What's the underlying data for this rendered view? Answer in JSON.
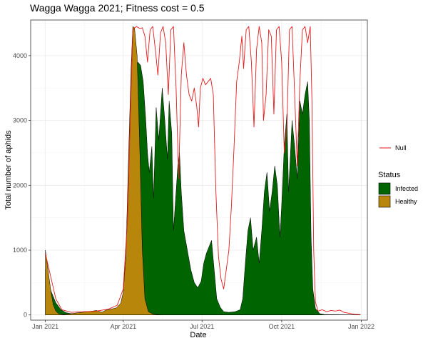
{
  "chart_data": {
    "type": "area",
    "title": "Wagga Wagga 2021; Fitness cost = 0.5",
    "xlabel": "Date",
    "ylabel": "Total number of aphids",
    "x_range": [
      "2020-12-15",
      "2022-01-08"
    ],
    "x_ticks": [
      {
        "date": "2021-01-01",
        "label": "Jan 2021"
      },
      {
        "date": "2021-04-01",
        "label": "Apr 2021"
      },
      {
        "date": "2021-07-01",
        "label": "Jul 2021"
      },
      {
        "date": "2021-10-01",
        "label": "Oct 2021"
      },
      {
        "date": "2022-01-01",
        "label": "Jan 2022"
      }
    ],
    "ylim": [
      -80,
      4550
    ],
    "y_ticks": [
      0,
      1000,
      2000,
      3000,
      4000
    ],
    "grid": true,
    "legend": {
      "position": "right",
      "line_entry": "Null",
      "fill_title": "Status",
      "fill_entries": [
        "Infected",
        "Healthy"
      ]
    },
    "series": [
      {
        "name": "Infected",
        "kind": "area",
        "color": "#006400",
        "points": [
          [
            "2021-01-01",
            700
          ],
          [
            "2021-01-04",
            520
          ],
          [
            "2021-01-08",
            350
          ],
          [
            "2021-01-13",
            190
          ],
          [
            "2021-01-19",
            80
          ],
          [
            "2021-01-25",
            35
          ],
          [
            "2021-01-31",
            20
          ],
          [
            "2021-02-08",
            25
          ],
          [
            "2021-02-15",
            35
          ],
          [
            "2021-02-22",
            40
          ],
          [
            "2021-03-01",
            45
          ],
          [
            "2021-03-08",
            40
          ],
          [
            "2021-03-15",
            50
          ],
          [
            "2021-03-22",
            45
          ],
          [
            "2021-03-28",
            60
          ],
          [
            "2021-04-01",
            80
          ],
          [
            "2021-04-05",
            200
          ],
          [
            "2021-04-09",
            800
          ],
          [
            "2021-04-12",
            2200
          ],
          [
            "2021-04-14",
            3500
          ],
          [
            "2021-04-15",
            3800
          ],
          [
            "2021-04-18",
            3900
          ],
          [
            "2021-04-21",
            3850
          ],
          [
            "2021-04-24",
            3600
          ],
          [
            "2021-04-27",
            3000
          ],
          [
            "2021-04-29",
            2500
          ],
          [
            "2021-05-01",
            2200
          ],
          [
            "2021-05-04",
            2600
          ],
          [
            "2021-05-06",
            1800
          ],
          [
            "2021-05-09",
            3200
          ],
          [
            "2021-05-12",
            2700
          ],
          [
            "2021-05-16",
            3500
          ],
          [
            "2021-05-19",
            3000
          ],
          [
            "2021-05-22",
            2400
          ],
          [
            "2021-05-24",
            3300
          ],
          [
            "2021-05-27",
            2800
          ],
          [
            "2021-05-29",
            1300
          ],
          [
            "2021-06-01",
            1900
          ],
          [
            "2021-06-03",
            2300
          ],
          [
            "2021-06-05",
            2500
          ],
          [
            "2021-06-07",
            1900
          ],
          [
            "2021-06-10",
            1300
          ],
          [
            "2021-06-14",
            1000
          ],
          [
            "2021-06-18",
            700
          ],
          [
            "2021-06-22",
            500
          ],
          [
            "2021-06-26",
            420
          ],
          [
            "2021-06-30",
            520
          ],
          [
            "2021-07-03",
            800
          ],
          [
            "2021-07-06",
            950
          ],
          [
            "2021-07-09",
            1050
          ],
          [
            "2021-07-12",
            1150
          ],
          [
            "2021-07-15",
            700
          ],
          [
            "2021-07-18",
            250
          ],
          [
            "2021-07-22",
            120
          ],
          [
            "2021-07-26",
            50
          ],
          [
            "2021-08-01",
            40
          ],
          [
            "2021-08-08",
            50
          ],
          [
            "2021-08-14",
            80
          ],
          [
            "2021-08-17",
            250
          ],
          [
            "2021-08-20",
            800
          ],
          [
            "2021-08-23",
            1300
          ],
          [
            "2021-08-26",
            1500
          ],
          [
            "2021-08-29",
            1000
          ],
          [
            "2021-09-02",
            1200
          ],
          [
            "2021-09-05",
            800
          ],
          [
            "2021-09-08",
            1300
          ],
          [
            "2021-09-11",
            1900
          ],
          [
            "2021-09-14",
            2200
          ],
          [
            "2021-09-17",
            1600
          ],
          [
            "2021-09-20",
            1900
          ],
          [
            "2021-09-23",
            2300
          ],
          [
            "2021-09-26",
            2000
          ],
          [
            "2021-09-29",
            1200
          ],
          [
            "2021-10-01",
            1700
          ],
          [
            "2021-10-04",
            2600
          ],
          [
            "2021-10-07",
            3100
          ],
          [
            "2021-10-09",
            1900
          ],
          [
            "2021-10-13",
            3000
          ],
          [
            "2021-10-16",
            2600
          ],
          [
            "2021-10-19",
            2100
          ],
          [
            "2021-10-22",
            3300
          ],
          [
            "2021-10-25",
            3100
          ],
          [
            "2021-10-28",
            3400
          ],
          [
            "2021-10-31",
            3600
          ],
          [
            "2021-11-02",
            3000
          ],
          [
            "2021-11-04",
            1200
          ],
          [
            "2021-11-06",
            400
          ],
          [
            "2021-11-09",
            100
          ],
          [
            "2021-11-14",
            20
          ],
          [
            "2021-11-20",
            5
          ],
          [
            "2021-12-31",
            0
          ]
        ]
      },
      {
        "name": "Healthy",
        "kind": "area",
        "color": "#b8860b",
        "points": [
          [
            "2021-01-01",
            1000
          ],
          [
            "2021-01-04",
            700
          ],
          [
            "2021-01-07",
            400
          ],
          [
            "2021-01-10",
            160
          ],
          [
            "2021-01-13",
            60
          ],
          [
            "2021-01-16",
            20
          ],
          [
            "2021-01-22",
            5
          ],
          [
            "2021-01-31",
            20
          ],
          [
            "2021-02-08",
            35
          ],
          [
            "2021-02-15",
            45
          ],
          [
            "2021-02-22",
            55
          ],
          [
            "2021-03-01",
            70
          ],
          [
            "2021-03-07",
            40
          ],
          [
            "2021-03-12",
            75
          ],
          [
            "2021-03-18",
            90
          ],
          [
            "2021-03-24",
            110
          ],
          [
            "2021-03-29",
            180
          ],
          [
            "2021-04-01",
            350
          ],
          [
            "2021-04-04",
            900
          ],
          [
            "2021-04-07",
            2400
          ],
          [
            "2021-04-10",
            3800
          ],
          [
            "2021-04-12",
            4450
          ],
          [
            "2021-04-14",
            4430
          ],
          [
            "2021-04-17",
            4000
          ],
          [
            "2021-04-20",
            2600
          ],
          [
            "2021-04-23",
            1000
          ],
          [
            "2021-04-26",
            250
          ],
          [
            "2021-04-30",
            50
          ],
          [
            "2021-05-06",
            10
          ],
          [
            "2021-05-16",
            0
          ],
          [
            "2021-12-31",
            0
          ]
        ]
      },
      {
        "name": "Null",
        "kind": "line",
        "color": "#e41a1c",
        "points": [
          [
            "2021-01-01",
            950
          ],
          [
            "2021-01-07",
            600
          ],
          [
            "2021-01-13",
            250
          ],
          [
            "2021-01-20",
            80
          ],
          [
            "2021-01-31",
            40
          ],
          [
            "2021-02-15",
            50
          ],
          [
            "2021-03-01",
            60
          ],
          [
            "2021-03-15",
            90
          ],
          [
            "2021-03-25",
            150
          ],
          [
            "2021-04-01",
            400
          ],
          [
            "2021-04-06",
            1500
          ],
          [
            "2021-04-09",
            3000
          ],
          [
            "2021-04-12",
            4400
          ],
          [
            "2021-04-16",
            4450
          ],
          [
            "2021-04-20",
            4420
          ],
          [
            "2021-04-23",
            4430
          ],
          [
            "2021-04-26",
            4300
          ],
          [
            "2021-04-29",
            3900
          ],
          [
            "2021-05-02",
            4400
          ],
          [
            "2021-05-05",
            4450
          ],
          [
            "2021-05-08",
            4100
          ],
          [
            "2021-05-11",
            3700
          ],
          [
            "2021-05-14",
            4350
          ],
          [
            "2021-05-17",
            4450
          ],
          [
            "2021-05-20",
            4200
          ],
          [
            "2021-05-23",
            3400
          ],
          [
            "2021-05-26",
            4400
          ],
          [
            "2021-05-29",
            4450
          ],
          [
            "2021-06-01",
            3500
          ],
          [
            "2021-06-04",
            2100
          ],
          [
            "2021-06-07",
            3700
          ],
          [
            "2021-06-10",
            4200
          ],
          [
            "2021-06-13",
            3700
          ],
          [
            "2021-06-16",
            3400
          ],
          [
            "2021-06-19",
            3300
          ],
          [
            "2021-06-22",
            3500
          ],
          [
            "2021-06-25",
            3200
          ],
          [
            "2021-06-27",
            2900
          ],
          [
            "2021-06-29",
            3500
          ],
          [
            "2021-07-02",
            3650
          ],
          [
            "2021-07-05",
            3550
          ],
          [
            "2021-07-08",
            3600
          ],
          [
            "2021-07-11",
            3650
          ],
          [
            "2021-07-14",
            3400
          ],
          [
            "2021-07-17",
            1900
          ],
          [
            "2021-07-20",
            900
          ],
          [
            "2021-07-23",
            550
          ],
          [
            "2021-07-26",
            400
          ],
          [
            "2021-07-29",
            700
          ],
          [
            "2021-08-01",
            1000
          ],
          [
            "2021-08-04",
            1700
          ],
          [
            "2021-08-07",
            2600
          ],
          [
            "2021-08-10",
            3600
          ],
          [
            "2021-08-13",
            3900
          ],
          [
            "2021-08-16",
            4300
          ],
          [
            "2021-08-18",
            3800
          ],
          [
            "2021-08-21",
            4400
          ],
          [
            "2021-08-24",
            4450
          ],
          [
            "2021-08-27",
            3900
          ],
          [
            "2021-08-30",
            2900
          ],
          [
            "2021-09-02",
            4100
          ],
          [
            "2021-09-05",
            4450
          ],
          [
            "2021-09-08",
            4200
          ],
          [
            "2021-09-10",
            3000
          ],
          [
            "2021-09-13",
            3400
          ],
          [
            "2021-09-16",
            4400
          ],
          [
            "2021-09-19",
            4300
          ],
          [
            "2021-09-22",
            3100
          ],
          [
            "2021-09-25",
            4400
          ],
          [
            "2021-09-28",
            4450
          ],
          [
            "2021-10-01",
            3900
          ],
          [
            "2021-10-04",
            2500
          ],
          [
            "2021-10-07",
            2900
          ],
          [
            "2021-10-10",
            4400
          ],
          [
            "2021-10-13",
            4450
          ],
          [
            "2021-10-16",
            3400
          ],
          [
            "2021-10-19",
            2300
          ],
          [
            "2021-10-22",
            3600
          ],
          [
            "2021-10-25",
            4400
          ],
          [
            "2021-10-28",
            4450
          ],
          [
            "2021-10-31",
            4200
          ],
          [
            "2021-11-03",
            4450
          ],
          [
            "2021-11-05",
            3300
          ],
          [
            "2021-11-07",
            1000
          ],
          [
            "2021-11-09",
            200
          ],
          [
            "2021-11-12",
            60
          ],
          [
            "2021-11-17",
            80
          ],
          [
            "2021-11-22",
            50
          ],
          [
            "2021-11-27",
            70
          ],
          [
            "2021-12-02",
            60
          ],
          [
            "2021-12-07",
            75
          ],
          [
            "2021-12-12",
            40
          ],
          [
            "2021-12-18",
            25
          ],
          [
            "2021-12-24",
            10
          ],
          [
            "2021-12-31",
            5
          ]
        ]
      }
    ]
  }
}
